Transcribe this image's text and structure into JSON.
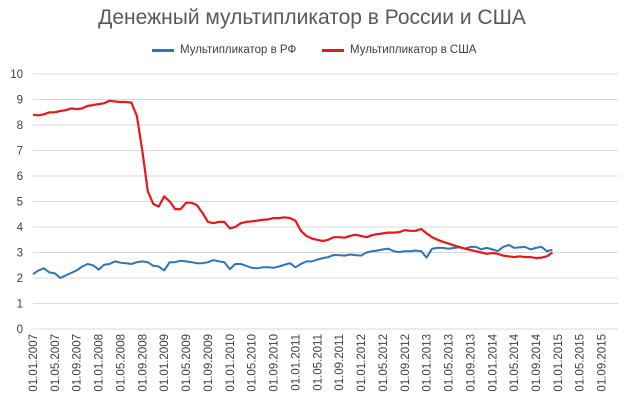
{
  "chart_data": {
    "type": "line",
    "title": "Денежный мультипликатор в России и США",
    "xlabel": "",
    "ylabel": "",
    "ylim": [
      0,
      10
    ],
    "yticks": [
      0,
      1,
      2,
      3,
      4,
      5,
      6,
      7,
      8,
      9,
      10
    ],
    "xlim": [
      "2007-01-01",
      "2015-12-01"
    ],
    "x_tick_labels": [
      "01.01.2007",
      "01.05.2007",
      "01.09.2007",
      "01.01.2008",
      "01.05.2008",
      "01.09.2008",
      "01.01.2009",
      "01.05.2009",
      "01.09.2009",
      "01.01.2010",
      "01.05.2010",
      "01.09.2010",
      "01.01.2011",
      "01.05.2011",
      "01.09.2011",
      "01.01.2012",
      "01.05.2012",
      "01.09.2012",
      "01.01.2013",
      "01.05.2013",
      "01.09.2013",
      "01.01.2014",
      "01.05.2014",
      "01.09.2014",
      "01.01.2015",
      "01.05.2015",
      "01.09.2015"
    ],
    "gridlines": "horizontal",
    "legend_position": "top",
    "series": [
      {
        "name": "Мультипликатор в РФ",
        "color": "#2E75B6",
        "x": [
          "2007-01",
          "2007-02",
          "2007-03",
          "2007-04",
          "2007-05",
          "2007-06",
          "2007-07",
          "2007-08",
          "2007-09",
          "2007-10",
          "2007-11",
          "2007-12",
          "2008-01",
          "2008-02",
          "2008-03",
          "2008-04",
          "2008-05",
          "2008-06",
          "2008-07",
          "2008-08",
          "2008-09",
          "2008-10",
          "2008-11",
          "2008-12",
          "2009-01",
          "2009-02",
          "2009-03",
          "2009-04",
          "2009-05",
          "2009-06",
          "2009-07",
          "2009-08",
          "2009-09",
          "2009-10",
          "2009-11",
          "2009-12",
          "2010-01",
          "2010-02",
          "2010-03",
          "2010-04",
          "2010-05",
          "2010-06",
          "2010-07",
          "2010-08",
          "2010-09",
          "2010-10",
          "2010-11",
          "2010-12",
          "2011-01",
          "2011-02",
          "2011-03",
          "2011-04",
          "2011-05",
          "2011-06",
          "2011-07",
          "2011-08",
          "2011-09",
          "2011-10",
          "2011-11",
          "2011-12",
          "2012-01",
          "2012-02",
          "2012-03",
          "2012-04",
          "2012-05",
          "2012-06",
          "2012-07",
          "2012-08",
          "2012-09",
          "2012-10",
          "2012-11",
          "2012-12",
          "2013-01",
          "2013-02",
          "2013-03",
          "2013-04",
          "2013-05",
          "2013-06",
          "2013-07",
          "2013-08",
          "2013-09",
          "2013-10",
          "2013-11",
          "2013-12",
          "2014-01",
          "2014-02",
          "2014-03",
          "2014-04",
          "2014-05",
          "2014-06",
          "2014-07",
          "2014-08",
          "2014-09",
          "2014-10",
          "2014-11",
          "2014-12"
        ],
        "values": [
          2.15,
          2.3,
          2.38,
          2.22,
          2.18,
          2.0,
          2.1,
          2.2,
          2.3,
          2.45,
          2.55,
          2.5,
          2.33,
          2.52,
          2.55,
          2.65,
          2.6,
          2.58,
          2.55,
          2.62,
          2.65,
          2.62,
          2.48,
          2.45,
          2.3,
          2.62,
          2.62,
          2.68,
          2.65,
          2.62,
          2.58,
          2.58,
          2.62,
          2.7,
          2.65,
          2.62,
          2.35,
          2.55,
          2.55,
          2.48,
          2.4,
          2.38,
          2.42,
          2.42,
          2.4,
          2.45,
          2.52,
          2.58,
          2.42,
          2.55,
          2.65,
          2.65,
          2.72,
          2.78,
          2.82,
          2.9,
          2.9,
          2.88,
          2.92,
          2.9,
          2.88,
          3.0,
          3.05,
          3.08,
          3.12,
          3.15,
          3.05,
          3.02,
          3.05,
          3.05,
          3.08,
          3.05,
          2.8,
          3.15,
          3.18,
          3.18,
          3.15,
          3.18,
          3.2,
          3.15,
          3.22,
          3.22,
          3.12,
          3.18,
          3.12,
          3.05,
          3.22,
          3.3,
          3.18,
          3.2,
          3.22,
          3.12,
          3.18,
          3.22,
          3.05,
          3.1
        ]
      },
      {
        "name": "Мультипликатор в США",
        "color": "#E3191C",
        "x": [
          "2007-01",
          "2007-02",
          "2007-03",
          "2007-04",
          "2007-05",
          "2007-06",
          "2007-07",
          "2007-08",
          "2007-09",
          "2007-10",
          "2007-11",
          "2007-12",
          "2008-01",
          "2008-02",
          "2008-03",
          "2008-04",
          "2008-05",
          "2008-06",
          "2008-07",
          "2008-08",
          "2008-09",
          "2008-10",
          "2008-11",
          "2008-12",
          "2009-01",
          "2009-02",
          "2009-03",
          "2009-04",
          "2009-05",
          "2009-06",
          "2009-07",
          "2009-08",
          "2009-09",
          "2009-10",
          "2009-11",
          "2009-12",
          "2010-01",
          "2010-02",
          "2010-03",
          "2010-04",
          "2010-05",
          "2010-06",
          "2010-07",
          "2010-08",
          "2010-09",
          "2010-10",
          "2010-11",
          "2010-12",
          "2011-01",
          "2011-02",
          "2011-03",
          "2011-04",
          "2011-05",
          "2011-06",
          "2011-07",
          "2011-08",
          "2011-09",
          "2011-10",
          "2011-11",
          "2011-12",
          "2012-01",
          "2012-02",
          "2012-03",
          "2012-04",
          "2012-05",
          "2012-06",
          "2012-07",
          "2012-08",
          "2012-09",
          "2012-10",
          "2012-11",
          "2012-12",
          "2013-01",
          "2013-02",
          "2013-03",
          "2013-04",
          "2013-05",
          "2013-06",
          "2013-07",
          "2013-08",
          "2013-09",
          "2013-10",
          "2013-11",
          "2013-12",
          "2014-01",
          "2014-02",
          "2014-03",
          "2014-04",
          "2014-05",
          "2014-06",
          "2014-07",
          "2014-08",
          "2014-09",
          "2014-10",
          "2014-11",
          "2014-12"
        ],
        "values": [
          8.4,
          8.38,
          8.42,
          8.5,
          8.5,
          8.55,
          8.58,
          8.65,
          8.62,
          8.65,
          8.75,
          8.78,
          8.82,
          8.85,
          8.95,
          8.92,
          8.9,
          8.9,
          8.88,
          8.35,
          7.0,
          5.4,
          4.9,
          4.8,
          5.2,
          5.0,
          4.7,
          4.7,
          4.95,
          4.95,
          4.85,
          4.55,
          4.2,
          4.15,
          4.2,
          4.2,
          3.95,
          4.0,
          4.15,
          4.2,
          4.22,
          4.25,
          4.28,
          4.3,
          4.35,
          4.35,
          4.38,
          4.35,
          4.25,
          3.85,
          3.65,
          3.55,
          3.5,
          3.45,
          3.5,
          3.6,
          3.6,
          3.58,
          3.65,
          3.7,
          3.65,
          3.6,
          3.68,
          3.72,
          3.75,
          3.78,
          3.78,
          3.8,
          3.88,
          3.85,
          3.85,
          3.92,
          3.75,
          3.6,
          3.5,
          3.42,
          3.35,
          3.28,
          3.22,
          3.15,
          3.1,
          3.05,
          3.0,
          2.95,
          2.98,
          2.95,
          2.88,
          2.85,
          2.82,
          2.85,
          2.82,
          2.82,
          2.78,
          2.8,
          2.85,
          3.0
        ]
      }
    ]
  }
}
